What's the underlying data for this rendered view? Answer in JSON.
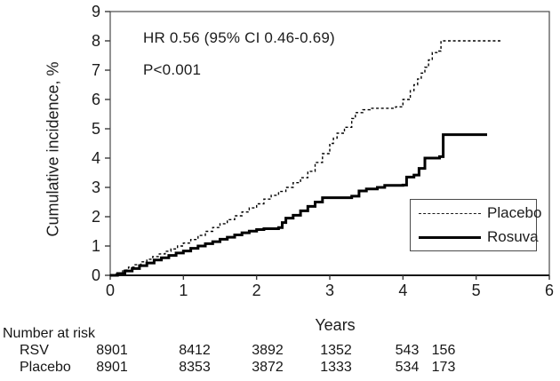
{
  "chart_data": {
    "type": "line",
    "subtype": "kaplan-meier-step",
    "xlabel": "Years",
    "ylabel": "Cumulative incidence, %",
    "xlim": [
      0,
      6
    ],
    "ylim": [
      0,
      9
    ],
    "xticks": [
      "0",
      "1",
      "2",
      "3",
      "4",
      "5",
      "6"
    ],
    "yticks": [
      "0",
      "1",
      "2",
      "3",
      "4",
      "5",
      "6",
      "7",
      "8",
      "9"
    ],
    "grid": "off",
    "annotations": [
      "HR 0.56 (95% CI 0.46-0.69)",
      "P<0.001"
    ],
    "legend": {
      "position": "lower right",
      "entries": [
        {
          "label": "Placebo",
          "style": "dashed"
        },
        {
          "label": "Rosuva",
          "style": "solid"
        }
      ]
    },
    "series": [
      {
        "name": "Placebo",
        "style": "dashed",
        "points": [
          [
            0,
            0
          ],
          [
            0.08,
            0.08
          ],
          [
            0.17,
            0.18
          ],
          [
            0.25,
            0.28
          ],
          [
            0.33,
            0.36
          ],
          [
            0.42,
            0.46
          ],
          [
            0.5,
            0.55
          ],
          [
            0.58,
            0.64
          ],
          [
            0.67,
            0.73
          ],
          [
            0.75,
            0.82
          ],
          [
            0.83,
            0.9
          ],
          [
            0.92,
            1.0
          ],
          [
            1.0,
            1.1
          ],
          [
            1.1,
            1.22
          ],
          [
            1.2,
            1.36
          ],
          [
            1.3,
            1.5
          ],
          [
            1.4,
            1.63
          ],
          [
            1.5,
            1.76
          ],
          [
            1.6,
            1.9
          ],
          [
            1.7,
            2.03
          ],
          [
            1.8,
            2.16
          ],
          [
            1.9,
            2.3
          ],
          [
            2.0,
            2.44
          ],
          [
            2.1,
            2.6
          ],
          [
            2.2,
            2.73
          ],
          [
            2.3,
            2.86
          ],
          [
            2.4,
            3.0
          ],
          [
            2.5,
            3.16
          ],
          [
            2.6,
            3.33
          ],
          [
            2.7,
            3.55
          ],
          [
            2.8,
            3.85
          ],
          [
            2.9,
            4.15
          ],
          [
            3.0,
            4.5
          ],
          [
            3.05,
            4.68
          ],
          [
            3.1,
            4.85
          ],
          [
            3.2,
            5.05
          ],
          [
            3.3,
            5.35
          ],
          [
            3.35,
            5.55
          ],
          [
            3.45,
            5.65
          ],
          [
            3.55,
            5.7
          ],
          [
            3.9,
            5.75
          ],
          [
            4.0,
            6.0
          ],
          [
            4.1,
            6.3
          ],
          [
            4.15,
            6.5
          ],
          [
            4.2,
            6.7
          ],
          [
            4.25,
            6.9
          ],
          [
            4.3,
            7.1
          ],
          [
            4.35,
            7.35
          ],
          [
            4.4,
            7.6
          ],
          [
            4.48,
            7.65
          ],
          [
            4.52,
            8.0
          ],
          [
            5.35,
            8.0
          ]
        ]
      },
      {
        "name": "Rosuva",
        "style": "solid",
        "points": [
          [
            0,
            0
          ],
          [
            0.1,
            0.06
          ],
          [
            0.2,
            0.15
          ],
          [
            0.3,
            0.23
          ],
          [
            0.4,
            0.33
          ],
          [
            0.5,
            0.42
          ],
          [
            0.6,
            0.52
          ],
          [
            0.7,
            0.6
          ],
          [
            0.8,
            0.68
          ],
          [
            0.9,
            0.76
          ],
          [
            1.0,
            0.83
          ],
          [
            1.1,
            0.92
          ],
          [
            1.2,
            1.0
          ],
          [
            1.3,
            1.08
          ],
          [
            1.4,
            1.15
          ],
          [
            1.5,
            1.23
          ],
          [
            1.6,
            1.3
          ],
          [
            1.7,
            1.38
          ],
          [
            1.8,
            1.45
          ],
          [
            1.9,
            1.51
          ],
          [
            2.0,
            1.56
          ],
          [
            2.1,
            1.59
          ],
          [
            2.3,
            1.63
          ],
          [
            2.35,
            1.8
          ],
          [
            2.4,
            1.95
          ],
          [
            2.5,
            2.05
          ],
          [
            2.6,
            2.2
          ],
          [
            2.7,
            2.35
          ],
          [
            2.8,
            2.5
          ],
          [
            2.9,
            2.65
          ],
          [
            3.3,
            2.7
          ],
          [
            3.4,
            2.88
          ],
          [
            3.5,
            2.95
          ],
          [
            3.65,
            3.0
          ],
          [
            3.75,
            3.07
          ],
          [
            4.0,
            3.08
          ],
          [
            4.05,
            3.35
          ],
          [
            4.15,
            3.42
          ],
          [
            4.22,
            3.65
          ],
          [
            4.3,
            4.0
          ],
          [
            4.5,
            4.05
          ],
          [
            4.55,
            4.8
          ],
          [
            5.15,
            4.8
          ]
        ]
      }
    ]
  },
  "risk_table": {
    "title": "Number at risk",
    "rows": [
      {
        "label": "RSV",
        "values": [
          "8901",
          "8412",
          "3892",
          "1352",
          "543",
          "156"
        ]
      },
      {
        "label": "Placebo",
        "values": [
          "8901",
          "8353",
          "3872",
          "1333",
          "534",
          "173"
        ]
      }
    ]
  },
  "colors": {
    "curve": "#000000",
    "text": "#1c1c1c",
    "frame": "#4a4a4a",
    "background": "#ffffff"
  }
}
